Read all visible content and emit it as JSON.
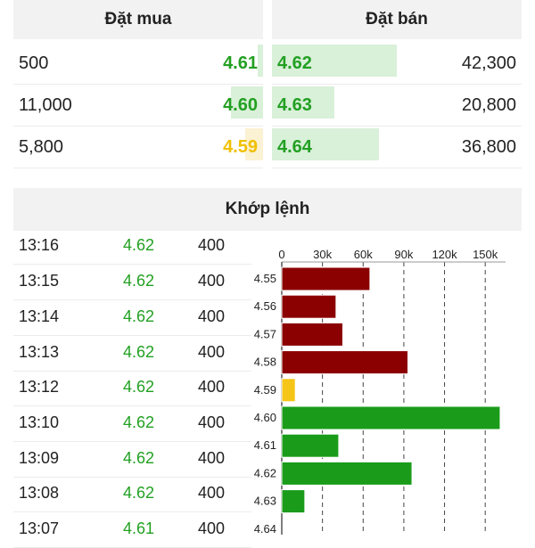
{
  "order_book": {
    "buy_title": "Đặt mua",
    "sell_title": "Đặt bán",
    "buy": [
      {
        "volume": "500",
        "price": "4.61",
        "color": "#22a022",
        "depth": 0.02
      },
      {
        "volume": "11,000",
        "price": "4.60",
        "color": "#22a022",
        "depth": 0.13
      },
      {
        "volume": "5,800",
        "price": "4.59",
        "color": "#f0c000",
        "depth": 0.07
      }
    ],
    "sell": [
      {
        "price": "4.62",
        "volume": "42,300",
        "color": "#22a022",
        "depth": 0.5
      },
      {
        "price": "4.63",
        "volume": "20,800",
        "color": "#22a022",
        "depth": 0.25
      },
      {
        "price": "4.64",
        "volume": "36,800",
        "color": "#22a022",
        "depth": 0.43
      }
    ]
  },
  "matched": {
    "title": "Khớp lệnh",
    "rows": [
      {
        "time": "13:16",
        "price": "4.62",
        "volume": "400"
      },
      {
        "time": "13:15",
        "price": "4.62",
        "volume": "400"
      },
      {
        "time": "13:14",
        "price": "4.62",
        "volume": "400"
      },
      {
        "time": "13:13",
        "price": "4.62",
        "volume": "400"
      },
      {
        "time": "13:12",
        "price": "4.62",
        "volume": "400"
      },
      {
        "time": "13:10",
        "price": "4.62",
        "volume": "400"
      },
      {
        "time": "13:09",
        "price": "4.62",
        "volume": "400"
      },
      {
        "time": "13:08",
        "price": "4.62",
        "volume": "400"
      },
      {
        "time": "13:07",
        "price": "4.61",
        "volume": "400"
      }
    ]
  },
  "chart_data": {
    "type": "bar",
    "orientation": "horizontal",
    "xlim": [
      0,
      165000
    ],
    "x_ticks": [
      0,
      30000,
      60000,
      90000,
      120000,
      150000
    ],
    "x_tick_labels": [
      "0",
      "30k",
      "60k",
      "90k",
      "120k",
      "150k"
    ],
    "grid": "vertical dashed",
    "categories": [
      "4.55",
      "4.56",
      "4.57",
      "4.58",
      "4.59",
      "4.60",
      "4.61",
      "4.62",
      "4.63",
      "4.64"
    ],
    "values": [
      65000,
      40000,
      45000,
      93000,
      10000,
      161000,
      42000,
      96000,
      17000,
      0
    ],
    "bar_colors": [
      "#8b0000",
      "#8b0000",
      "#8b0000",
      "#8b0000",
      "#f5c518",
      "#1a9c1a",
      "#1a9c1a",
      "#1a9c1a",
      "#1a9c1a",
      "#1a9c1a"
    ]
  }
}
